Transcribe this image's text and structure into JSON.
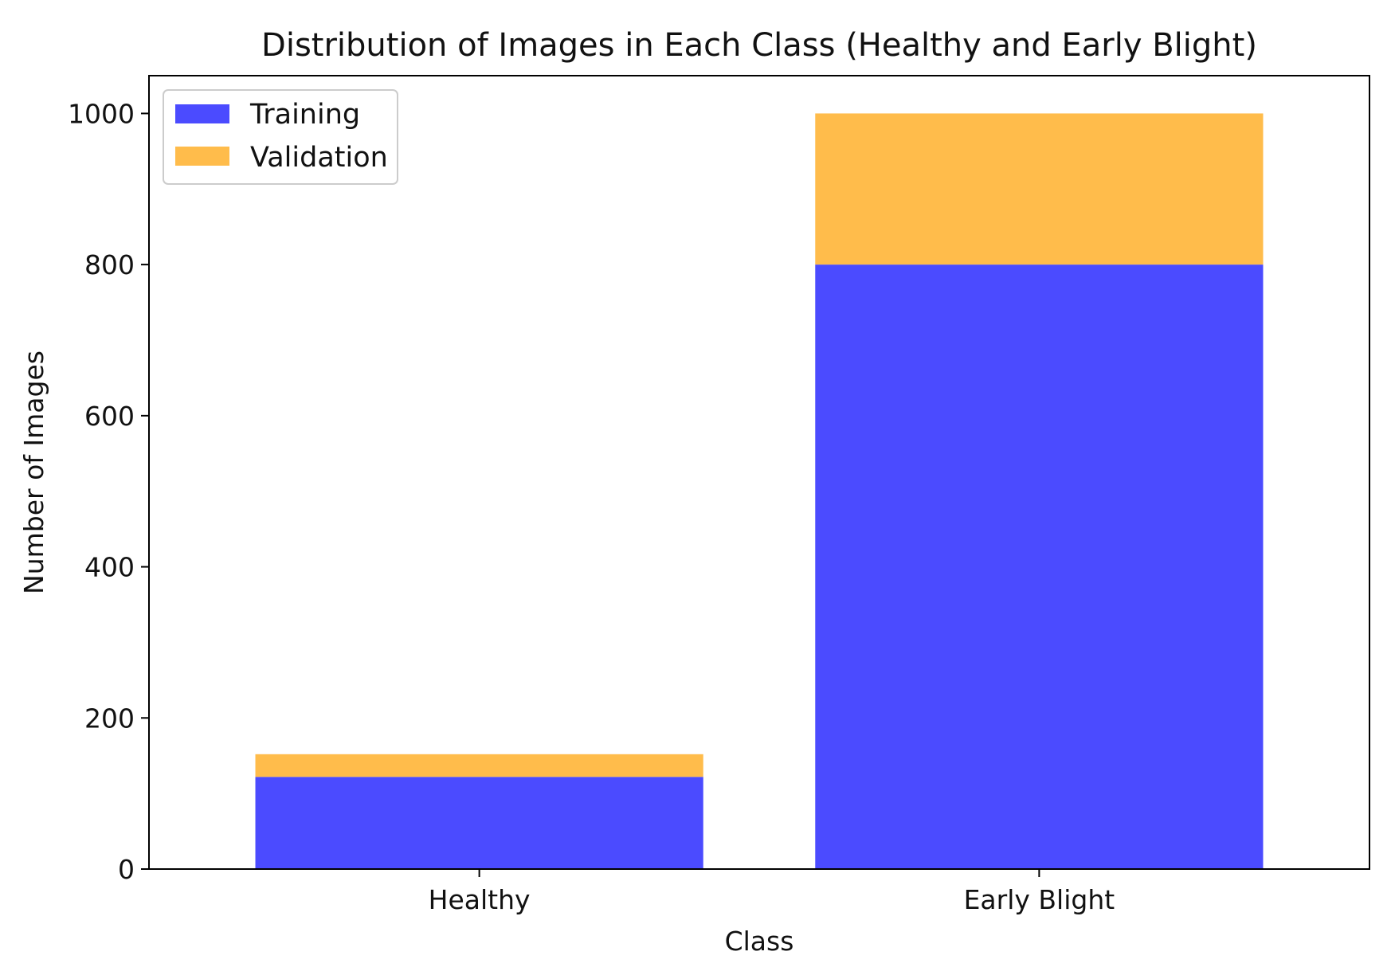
{
  "chart_data": {
    "type": "bar",
    "stacked": true,
    "title": "Distribution of Images in Each Class (Healthy and Early Blight)",
    "xlabel": "Class",
    "ylabel": "Number of Images",
    "categories": [
      "Healthy",
      "Early Blight"
    ],
    "series": [
      {
        "name": "Training",
        "color": "#4b4bff",
        "values": [
          122,
          800
        ]
      },
      {
        "name": "Validation",
        "color": "#ffbc4b",
        "values": [
          30,
          200
        ]
      }
    ],
    "ylim": [
      0,
      1050
    ],
    "yticks": [
      0,
      200,
      400,
      600,
      800,
      1000
    ],
    "grid": false,
    "legend_position": "top-left"
  }
}
